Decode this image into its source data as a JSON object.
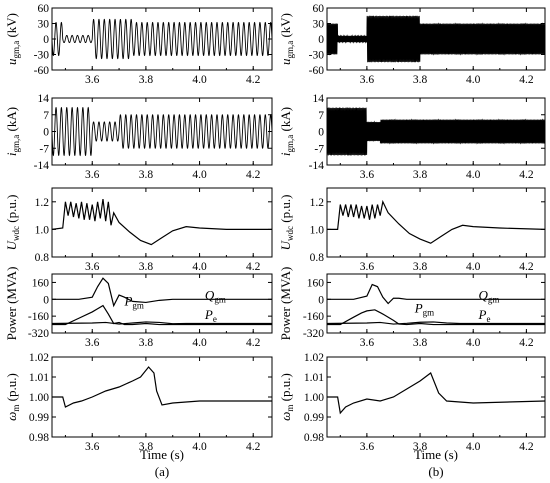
{
  "figure": {
    "captions": [
      "(a)",
      "(b)"
    ],
    "xlabel": "Time (s)"
  },
  "chart_data": [
    {
      "type": "line",
      "column": "a",
      "row": 0,
      "ylabel": "u_gm,a (kV)",
      "ylabel_main": "u",
      "ylabel_sub": "gm,a",
      "ylabel_unit": "(kV)",
      "xlim": [
        3.45,
        4.27
      ],
      "xticks": [
        3.6,
        3.8,
        4.0,
        4.2
      ],
      "xtick_labels": [
        "3.6",
        "3.8",
        "4.0",
        "4.2"
      ],
      "ylim": [
        -60,
        60
      ],
      "yticks": [
        60,
        30,
        0,
        -30,
        -60
      ],
      "ytick_labels": [
        "60",
        "30",
        "0",
        "-30",
        "-60"
      ],
      "series": [
        {
          "signal": "osc",
          "freq_hz": 50,
          "segments": [
            {
              "t0": 3.45,
              "t1": 3.49,
              "amp": 32,
              "offset": 0
            },
            {
              "t0": 3.49,
              "t1": 3.6,
              "amp": 7,
              "offset": 0
            },
            {
              "t0": 3.6,
              "t1": 3.75,
              "amp": 38,
              "offset": 0
            },
            {
              "t0": 3.75,
              "t1": 4.27,
              "amp": 32,
              "offset": 0
            }
          ]
        }
      ]
    },
    {
      "type": "line",
      "column": "a",
      "row": 1,
      "ylabel": "i_gm,a (kA)",
      "ylabel_main": "i",
      "ylabel_sub": "gm,a",
      "ylabel_unit": "(kA)",
      "xlim": [
        3.45,
        4.27
      ],
      "xticks": [
        3.6,
        3.8,
        4.0,
        4.2
      ],
      "xtick_labels": [
        "3.6",
        "3.8",
        "4.0",
        "4.2"
      ],
      "ylim": [
        -14,
        14
      ],
      "yticks": [
        14,
        7,
        0,
        -7,
        -14
      ],
      "ytick_labels": [
        "14",
        "7",
        "0",
        "-7",
        "-14"
      ],
      "series": [
        {
          "signal": "osc",
          "freq_hz": 50,
          "segments": [
            {
              "t0": 3.45,
              "t1": 3.6,
              "amp": 10,
              "offset": 0
            },
            {
              "t0": 3.6,
              "t1": 3.7,
              "amp": 4,
              "offset": 0
            },
            {
              "t0": 3.7,
              "t1": 4.27,
              "amp": 7,
              "offset": 0
            }
          ]
        }
      ]
    },
    {
      "type": "line",
      "column": "a",
      "row": 2,
      "ylabel": "U_wdc (p.u.)",
      "ylabel_main": "U",
      "ylabel_sub": "wdc",
      "ylabel_unit": "(p.u.)",
      "xlim": [
        3.45,
        4.27
      ],
      "xticks": [
        3.6,
        3.8,
        4.0,
        4.2
      ],
      "xtick_labels": [
        "3.6",
        "3.8",
        "4.0",
        "4.2"
      ],
      "ylim": [
        0.8,
        1.3
      ],
      "yticks": [
        1.2,
        1.0,
        0.8
      ],
      "ytick_labels": [
        "1.2",
        "1.0",
        "0.8"
      ],
      "series": [
        {
          "signal": "points",
          "x": [
            3.45,
            3.49,
            3.5,
            3.51,
            3.52,
            3.53,
            3.54,
            3.55,
            3.56,
            3.57,
            3.58,
            3.59,
            3.6,
            3.61,
            3.62,
            3.63,
            3.64,
            3.65,
            3.66,
            3.67,
            3.68,
            3.7,
            3.74,
            3.78,
            3.82,
            3.86,
            3.9,
            3.95,
            4.0,
            4.1,
            4.27
          ],
          "y": [
            1.0,
            1.01,
            1.2,
            1.1,
            1.2,
            1.09,
            1.19,
            1.08,
            1.2,
            1.07,
            1.19,
            1.07,
            1.18,
            1.06,
            1.2,
            1.08,
            1.22,
            1.06,
            1.2,
            1.03,
            1.12,
            1.05,
            0.98,
            0.92,
            0.89,
            0.94,
            0.99,
            1.02,
            1.01,
            1.0,
            1.0
          ]
        }
      ]
    },
    {
      "type": "line",
      "column": "a",
      "row": 3,
      "ylabel": "Power (MVA)",
      "xlim": [
        3.45,
        4.27
      ],
      "xticks": [
        3.6,
        3.8,
        4.0,
        4.2
      ],
      "xtick_labels": [
        "3.6",
        "3.8",
        "4.0",
        "4.2"
      ],
      "ylim": [
        -320,
        240
      ],
      "yticks": [
        160,
        0,
        -160,
        -320
      ],
      "ytick_labels": [
        "160",
        "0",
        "-160",
        "-320"
      ],
      "annotations": [
        {
          "text": "Q",
          "sub": "gm",
          "x": 4.02,
          "y": 0
        },
        {
          "text": "P",
          "sub": "gm",
          "x": 3.72,
          "y": -60
        },
        {
          "text": "P",
          "sub": "e",
          "x": 4.02,
          "y": -185
        }
      ],
      "series": [
        {
          "name": "Q_gm",
          "signal": "points",
          "x": [
            3.45,
            3.5,
            3.55,
            3.6,
            3.62,
            3.64,
            3.66,
            3.68,
            3.7,
            3.72,
            3.75,
            3.8,
            3.85,
            3.9,
            4.27
          ],
          "y": [
            0,
            0,
            0,
            20,
            120,
            200,
            150,
            -60,
            40,
            20,
            -20,
            -30,
            -10,
            0,
            0
          ]
        },
        {
          "name": "P_gm",
          "signal": "points",
          "x": [
            3.45,
            3.5,
            3.55,
            3.6,
            3.62,
            3.64,
            3.66,
            3.68,
            3.7,
            3.72,
            3.75,
            3.8,
            3.85,
            3.9,
            4.27
          ],
          "y": [
            -240,
            -240,
            -180,
            -120,
            -90,
            -60,
            -140,
            -230,
            -220,
            -240,
            -240,
            -230,
            -240,
            -240,
            -240
          ]
        },
        {
          "name": "P_e",
          "signal": "points",
          "x": [
            3.45,
            3.6,
            3.65,
            3.7,
            3.75,
            3.8,
            3.85,
            3.9,
            3.95,
            4.27
          ],
          "y": [
            -230,
            -225,
            -220,
            -235,
            -225,
            -215,
            -220,
            -232,
            -230,
            -230
          ]
        }
      ]
    },
    {
      "type": "line",
      "column": "a",
      "row": 4,
      "ylabel": "ω_m (p.u.)",
      "ylabel_main": "ω",
      "ylabel_sub": "m",
      "ylabel_unit": "(p.u.)",
      "xlim": [
        3.45,
        4.27
      ],
      "xticks": [
        3.6,
        3.8,
        4.0,
        4.2
      ],
      "xtick_labels": [
        "3.6",
        "3.8",
        "4.0",
        "4.2"
      ],
      "ylim": [
        0.98,
        1.02
      ],
      "yticks": [
        1.02,
        1.01,
        1.0,
        0.99,
        0.98
      ],
      "ytick_labels": [
        "1.02",
        "1.01",
        "1.00",
        "0.99",
        "0.98"
      ],
      "series": [
        {
          "signal": "points",
          "x": [
            3.45,
            3.49,
            3.5,
            3.53,
            3.56,
            3.6,
            3.65,
            3.7,
            3.75,
            3.78,
            3.81,
            3.83,
            3.84,
            3.86,
            3.9,
            4.0,
            4.27
          ],
          "y": [
            1.0,
            1.0,
            0.995,
            0.997,
            0.998,
            1.0,
            1.003,
            1.005,
            1.008,
            1.01,
            1.015,
            1.012,
            1.003,
            0.996,
            0.997,
            0.998,
            0.998
          ]
        }
      ]
    },
    {
      "type": "line",
      "column": "b",
      "row": 0,
      "ylabel": "u_gm,a (kV)",
      "ylabel_main": "u",
      "ylabel_sub": "gm,a",
      "ylabel_unit": "(kV)",
      "xlim": [
        3.45,
        4.27
      ],
      "xticks": [
        3.6,
        3.8,
        4.0,
        4.2
      ],
      "xtick_labels": [
        "3.6",
        "3.8",
        "4.0",
        "4.2"
      ],
      "ylim": [
        -60,
        60
      ],
      "yticks": [
        60,
        30,
        0,
        -30,
        -60
      ],
      "ytick_labels": [
        "60",
        "30",
        "0",
        "-30",
        "-60"
      ],
      "series": [
        {
          "signal": "osc",
          "freq_hz": 250,
          "segments": [
            {
              "t0": 3.45,
              "t1": 3.49,
              "amp": 30,
              "offset": 0
            },
            {
              "t0": 3.49,
              "t1": 3.6,
              "amp": 6,
              "offset": 0
            },
            {
              "t0": 3.6,
              "t1": 3.8,
              "amp": 45,
              "offset": 0
            },
            {
              "t0": 3.8,
              "t1": 4.27,
              "amp": 30,
              "offset": 0
            }
          ]
        }
      ]
    },
    {
      "type": "line",
      "column": "b",
      "row": 1,
      "ylabel": "i_gm,a (kA)",
      "ylabel_main": "i",
      "ylabel_sub": "gm,a",
      "ylabel_unit": "(kA)",
      "xlim": [
        3.45,
        4.27
      ],
      "xticks": [
        3.6,
        3.8,
        4.0,
        4.2
      ],
      "xtick_labels": [
        "3.6",
        "3.8",
        "4.0",
        "4.2"
      ],
      "ylim": [
        -14,
        14
      ],
      "yticks": [
        14,
        7,
        0,
        -7,
        -14
      ],
      "ytick_labels": [
        "14",
        "7",
        "0",
        "-7",
        "-14"
      ],
      "series": [
        {
          "signal": "osc",
          "freq_hz": 250,
          "segments": [
            {
              "t0": 3.45,
              "t1": 3.6,
              "amp": 10,
              "offset": 0
            },
            {
              "t0": 3.6,
              "t1": 3.65,
              "amp": 4,
              "offset": 0
            },
            {
              "t0": 3.65,
              "t1": 4.27,
              "amp": 5,
              "offset": 0
            }
          ]
        }
      ]
    },
    {
      "type": "line",
      "column": "b",
      "row": 2,
      "ylabel": "U_wdc (p.u.)",
      "ylabel_main": "U",
      "ylabel_sub": "wdc",
      "ylabel_unit": "(p.u.)",
      "xlim": [
        3.45,
        4.27
      ],
      "xticks": [
        3.6,
        3.8,
        4.0,
        4.2
      ],
      "xtick_labels": [
        "3.6",
        "3.8",
        "4.0",
        "4.2"
      ],
      "ylim": [
        0.8,
        1.3
      ],
      "yticks": [
        1.2,
        1.0,
        0.8
      ],
      "ytick_labels": [
        "1.2",
        "1.0",
        "0.8"
      ],
      "series": [
        {
          "signal": "points",
          "x": [
            3.45,
            3.49,
            3.5,
            3.51,
            3.52,
            3.53,
            3.54,
            3.55,
            3.56,
            3.57,
            3.58,
            3.59,
            3.6,
            3.61,
            3.62,
            3.63,
            3.64,
            3.65,
            3.66,
            3.68,
            3.72,
            3.76,
            3.8,
            3.84,
            3.88,
            3.92,
            3.96,
            4.0,
            4.1,
            4.27
          ],
          "y": [
            1.0,
            1.0,
            1.18,
            1.1,
            1.18,
            1.09,
            1.18,
            1.09,
            1.18,
            1.08,
            1.17,
            1.08,
            1.17,
            1.07,
            1.18,
            1.08,
            1.18,
            1.1,
            1.2,
            1.12,
            1.04,
            0.97,
            0.93,
            0.9,
            0.95,
            1.0,
            1.03,
            1.02,
            1.01,
            1.0
          ]
        }
      ]
    },
    {
      "type": "line",
      "column": "b",
      "row": 3,
      "ylabel": "Power (MVA)",
      "xlim": [
        3.45,
        4.27
      ],
      "xticks": [
        3.6,
        3.8,
        4.0,
        4.2
      ],
      "xtick_labels": [
        "3.6",
        "3.8",
        "4.0",
        "4.2"
      ],
      "ylim": [
        -320,
        240
      ],
      "yticks": [
        160,
        0,
        -160,
        -320
      ],
      "ytick_labels": [
        "160",
        "0",
        "-160",
        "-320"
      ],
      "annotations": [
        {
          "text": "Q",
          "sub": "gm",
          "x": 4.02,
          "y": 0
        },
        {
          "text": "P",
          "sub": "gm",
          "x": 3.78,
          "y": -125
        },
        {
          "text": "P",
          "sub": "e",
          "x": 4.02,
          "y": -185
        }
      ],
      "series": [
        {
          "name": "Q_gm",
          "signal": "points",
          "x": [
            3.45,
            3.5,
            3.55,
            3.6,
            3.62,
            3.64,
            3.66,
            3.68,
            3.7,
            3.72,
            3.75,
            3.8,
            3.85,
            3.9,
            4.27
          ],
          "y": [
            0,
            0,
            0,
            30,
            140,
            120,
            20,
            -40,
            10,
            10,
            0,
            0,
            0,
            0,
            0
          ]
        },
        {
          "name": "P_gm",
          "signal": "points",
          "x": [
            3.45,
            3.5,
            3.55,
            3.58,
            3.6,
            3.63,
            3.66,
            3.7,
            3.72,
            3.75,
            3.8,
            3.85,
            3.9,
            4.27
          ],
          "y": [
            -240,
            -240,
            -170,
            -130,
            -110,
            -100,
            -140,
            -200,
            -235,
            -240,
            -230,
            -240,
            -240,
            -240
          ]
        },
        {
          "name": "P_e",
          "signal": "points",
          "x": [
            3.45,
            3.6,
            3.65,
            3.7,
            3.75,
            3.8,
            3.85,
            3.9,
            3.95,
            4.27
          ],
          "y": [
            -230,
            -225,
            -220,
            -235,
            -228,
            -218,
            -215,
            -225,
            -230,
            -230
          ]
        }
      ]
    },
    {
      "type": "line",
      "column": "b",
      "row": 4,
      "ylabel": "ω_m (p.u.)",
      "ylabel_main": "ω",
      "ylabel_sub": "m",
      "ylabel_unit": "(p.u.)",
      "xlim": [
        3.45,
        4.27
      ],
      "xticks": [
        3.6,
        3.8,
        4.0,
        4.2
      ],
      "xtick_labels": [
        "3.6",
        "3.8",
        "4.0",
        "4.2"
      ],
      "ylim": [
        0.98,
        1.02
      ],
      "yticks": [
        1.02,
        1.01,
        1.0,
        0.99,
        0.98
      ],
      "ytick_labels": [
        "1.02",
        "1.01",
        "1.00",
        "0.99",
        "0.98"
      ],
      "series": [
        {
          "signal": "points",
          "x": [
            3.45,
            3.49,
            3.5,
            3.52,
            3.55,
            3.6,
            3.65,
            3.7,
            3.75,
            3.8,
            3.84,
            3.87,
            3.9,
            4.0,
            4.27
          ],
          "y": [
            1.0,
            1.0,
            0.992,
            0.995,
            0.997,
            0.999,
            0.998,
            1.0,
            1.004,
            1.008,
            1.012,
            1.002,
            0.998,
            0.997,
            0.998
          ]
        }
      ]
    }
  ]
}
